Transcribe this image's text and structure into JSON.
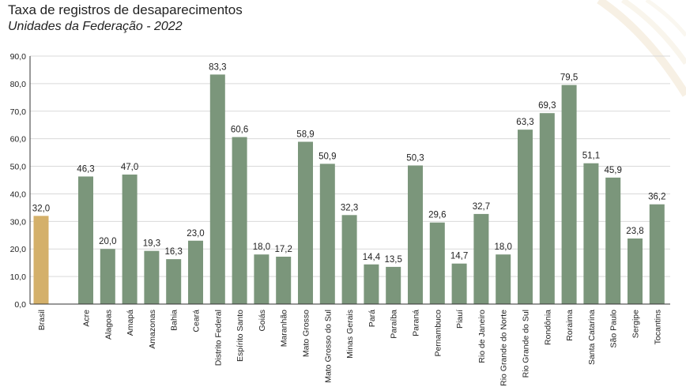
{
  "header": {
    "title": "Taxa de registros de desaparecimentos",
    "subtitle": "Unidades da Federação - 2022"
  },
  "colors": {
    "highlight": "#d4b06a",
    "bar": "#7b967b",
    "grid": "#d9d9d9",
    "axis": "#333333"
  },
  "chart_data": {
    "type": "bar",
    "title": "Taxa de registros de desaparecimentos",
    "subtitle": "Unidades da Federação - 2022",
    "xlabel": "",
    "ylabel": "",
    "ylim": [
      0,
      90
    ],
    "yticks": [
      "0,0",
      "10,0",
      "20,0",
      "30,0",
      "40,0",
      "50,0",
      "60,0",
      "70,0",
      "80,0",
      "90,0"
    ],
    "grid": true,
    "legend": "none",
    "categories": [
      "Brasil",
      "Acre",
      "Alagoas",
      "Amapá",
      "Amazonas",
      "Bahia",
      "Ceará",
      "Distrito Federal",
      "Espírito Santo",
      "Goiás",
      "Maranhão",
      "Mato Grosso",
      "Mato Grosso do Sul",
      "Minas Gerais",
      "Pará",
      "Paraíba",
      "Paraná",
      "Pernambuco",
      "Piauí",
      "Rio de Janeiro",
      "Rio Grande do Norte",
      "Rio Grande do Sul",
      "Rondônia",
      "Roraima",
      "Santa Catarina",
      "São Paulo",
      "Sergipe",
      "Tocantins"
    ],
    "values": [
      32.0,
      46.3,
      20.0,
      47.0,
      19.3,
      16.3,
      23.0,
      83.3,
      60.6,
      18.0,
      17.2,
      58.9,
      50.9,
      32.3,
      14.4,
      13.5,
      50.3,
      29.6,
      14.7,
      32.7,
      18.0,
      63.3,
      69.3,
      79.5,
      51.1,
      45.9,
      23.8,
      36.2
    ],
    "value_labels": [
      "32,0",
      "46,3",
      "20,0",
      "47,0",
      "19,3",
      "16,3",
      "23,0",
      "83,3",
      "60,6",
      "18,0",
      "17,2",
      "58,9",
      "50,9",
      "32,3",
      "14,4",
      "13,5",
      "50,3",
      "29,6",
      "14,7",
      "32,7",
      "18,0",
      "63,3",
      "69,3",
      "79,5",
      "51,1",
      "45,9",
      "23,8",
      "36,2"
    ],
    "highlighted": "Brasil"
  }
}
